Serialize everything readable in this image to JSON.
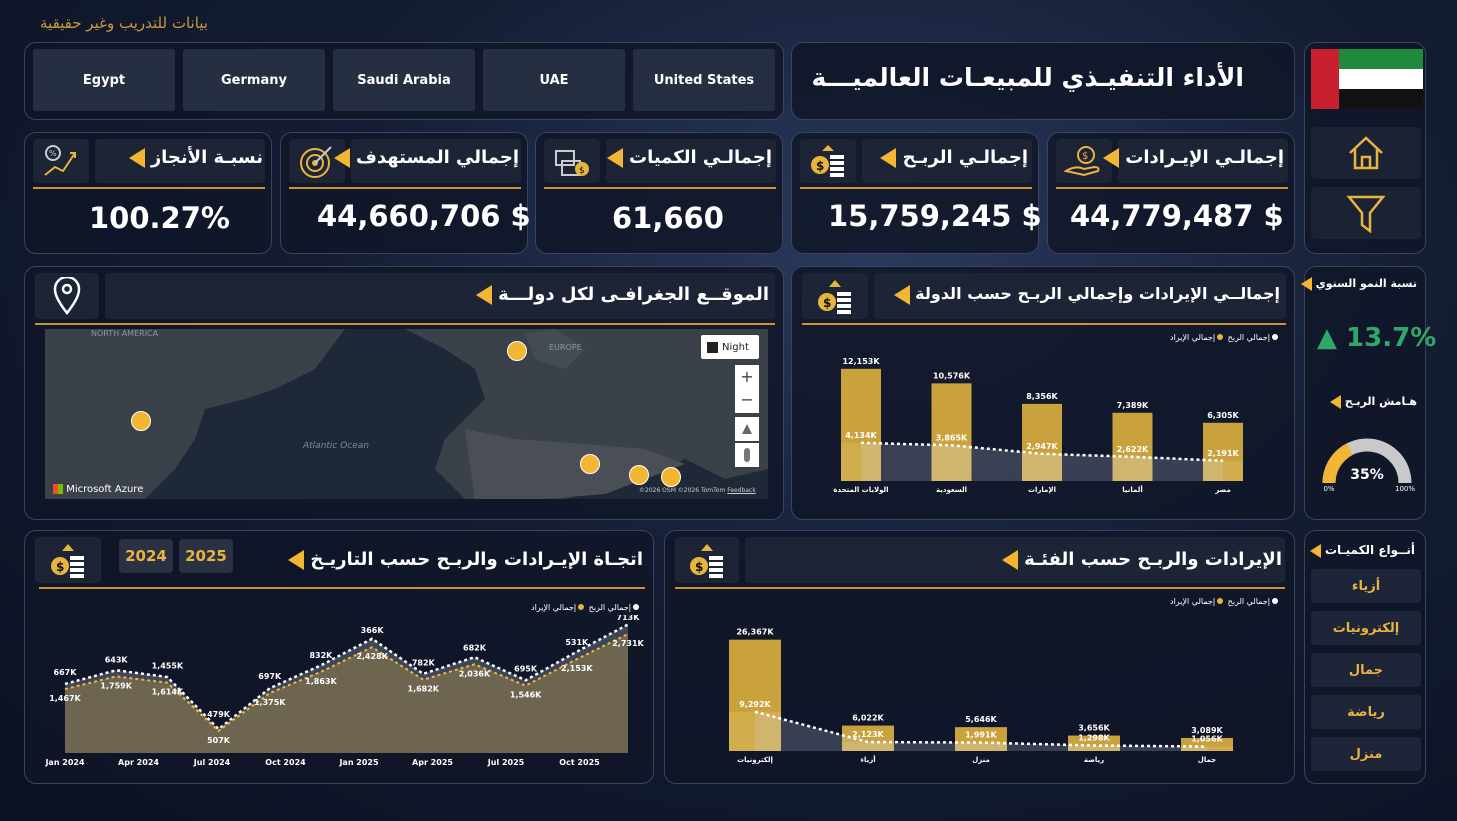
{
  "header": {
    "watermark": "بيانات للتدريب وغير حقيقية",
    "title": "الأداء التنفيـذي للمبيعـات العالميـــة"
  },
  "countries": [
    "Egypt",
    "Germany",
    "Saudi Arabia",
    "UAE",
    "United States"
  ],
  "nav": {
    "icons": [
      "home-icon",
      "filter-icon"
    ]
  },
  "kpis": {
    "revenue": {
      "label": "إجمالـي الإيـرادات",
      "value": "44,779,487 $"
    },
    "profit": {
      "label": "إجمالـي الربـح",
      "value": "15,759,245 $"
    },
    "quantity": {
      "label": "إجمالـي الكميات",
      "value": "61,660"
    },
    "target": {
      "label": "إجمالي المستهدف",
      "value": "44,660,706 $"
    },
    "achievement": {
      "label": "نسبـة الأنجاز",
      "value": "100.27%"
    }
  },
  "growth": {
    "label": "نسبة النمو السنوي",
    "value": "▲ 13.7%"
  },
  "margin": {
    "label": "هـامش الربـح",
    "value": "35%",
    "fraction": 0.35,
    "min": "0%",
    "max": "100%"
  },
  "map": {
    "title": "الموقــع الجغرافـى لكل دولـــة",
    "region_na": "NORTH AMERICA",
    "region_eu": "EUROPE",
    "ocean": "Atlantic Ocean",
    "night_label": "Night",
    "brand": "Microsoft Azure",
    "credits": "©2026 OSM ©2026 TomTom",
    "feedback": "Feedback"
  },
  "country_chart": {
    "title": "إجمالــي الإيرادات وإجمالي الربـح حسب الدولة",
    "legend_profit": "إجمالي الربح",
    "legend_revenue": "إجمالي الإيراد"
  },
  "trend": {
    "title": "اتجـاة الإيـرادات والربـح حسب التاريـخ",
    "years": [
      "2024",
      "2025"
    ],
    "legend_profit": "إجمالي الربح",
    "legend_revenue": "إجمالي الإيراد"
  },
  "category_chart": {
    "title": "الإيرادات والربـح حسب الفئـة",
    "legend_profit": "إجمالي الربح",
    "legend_revenue": "إجمالي الإيراد"
  },
  "categories_panel": {
    "title": "أنــواع الكميـات",
    "items": [
      "أزياء",
      "إلكترونيات",
      "جمال",
      "رياضة",
      "منزل"
    ]
  },
  "colors": {
    "gold": "#e8b53c",
    "bar_gold": "#c9a23e",
    "bar_light": "#d8b659",
    "panel": "#10162a"
  },
  "chart_data": [
    {
      "type": "bar",
      "title": "إجمالــي الإيرادات وإجمالي الربـح حسب الدولة",
      "categories": [
        "الولايات المتحدة",
        "السعودية",
        "الإمارات",
        "ألمانيا",
        "مصر"
      ],
      "series": [
        {
          "name": "إجمالي الإيراد",
          "values": [
            12153,
            10576,
            8356,
            7389,
            6305
          ],
          "labels": [
            "12,153K",
            "10,576K",
            "8,356K",
            "7,389K",
            "6,305K"
          ]
        },
        {
          "name": "إجمالي الربح",
          "values": [
            4134,
            3865,
            2947,
            2622,
            2191
          ],
          "labels": [
            "4,134K",
            "3,865K",
            "2,947K",
            "2,622K",
            "2,191K"
          ]
        }
      ],
      "ylim": [
        0,
        13000
      ]
    },
    {
      "type": "area",
      "title": "اتجـاة الإيـرادات والربـح حسب التاريـخ",
      "ticks": [
        "Jan 2024",
        "Apr 2024",
        "Jul 2024",
        "Oct 2024",
        "Jan 2025",
        "Apr 2025",
        "Jul 2025",
        "Oct 2025"
      ],
      "revenue_points": [
        1467,
        1759,
        1614,
        507,
        1375,
        1863,
        2428,
        1682,
        2036,
        1546,
        2153,
        2731
      ],
      "revenue_labels": [
        "1,467K",
        "1,759K",
        "1,614K",
        "507K",
        "1,375K",
        "1,863K",
        "2,428K",
        "1,682K",
        "2,036K",
        "1,546K",
        "2,153K",
        "2,731K"
      ],
      "profit_points": [
        667,
        643,
        1455,
        479,
        697,
        832,
        366,
        782,
        682,
        695,
        531,
        713
      ],
      "profit_labels": [
        "667K",
        "643K",
        "1,455K",
        "479K",
        "697K",
        "832K",
        "366K",
        "782K",
        "682K",
        "695K",
        "531K",
        "713K"
      ]
    },
    {
      "type": "bar",
      "title": "الإيرادات والربـح حسب الفئـة",
      "categories": [
        "إلكترونيات",
        "أزياء",
        "منزل",
        "رياضة",
        "جمال"
      ],
      "series": [
        {
          "name": "إجمالي الإيراد",
          "values": [
            26367,
            6022,
            5646,
            3656,
            3089
          ],
          "labels": [
            "26,367K",
            "6,022K",
            "5,646K",
            "3,656K",
            "3,089K"
          ]
        },
        {
          "name": "إجمالي الربح",
          "values": [
            9292,
            2123,
            1991,
            1298,
            1056
          ],
          "labels": [
            "9,292K",
            "2,123K",
            "1,991K",
            "1,298K",
            "1,056K"
          ]
        }
      ],
      "ylim": [
        0,
        27000
      ]
    }
  ]
}
